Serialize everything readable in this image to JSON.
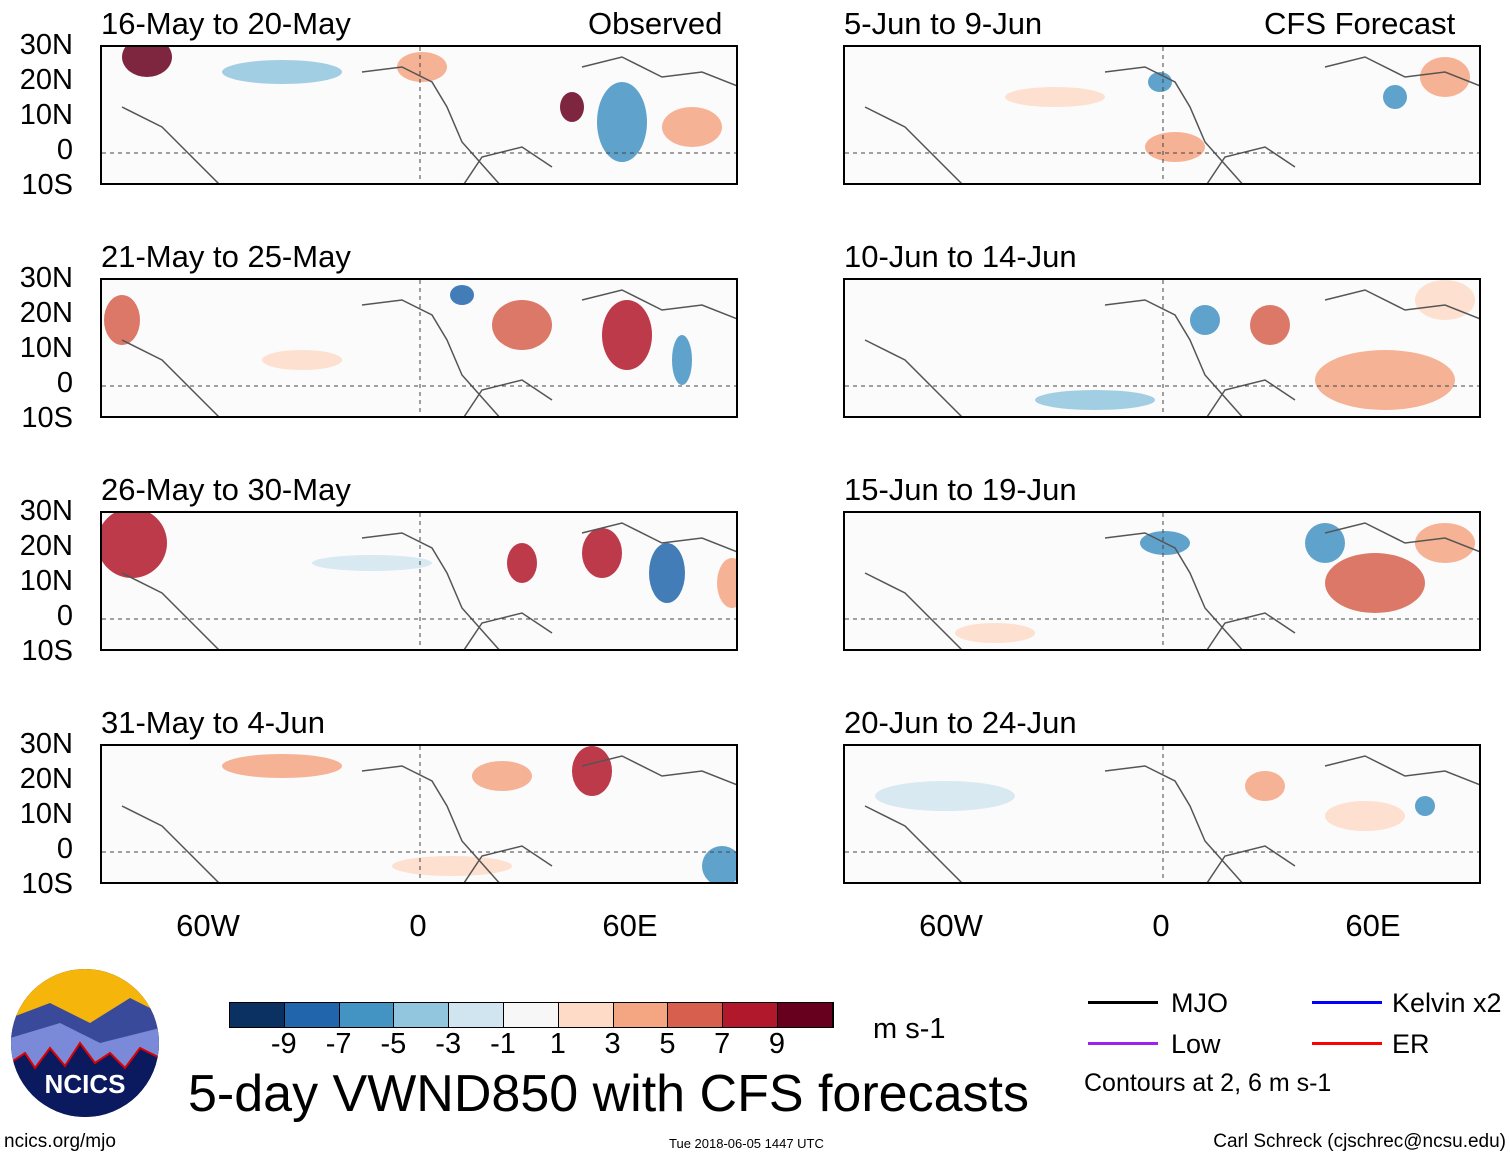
{
  "header": {
    "observed_label": "Observed",
    "forecast_label": "CFS Forecast"
  },
  "panels_observed": [
    {
      "title": "16-May to 20-May"
    },
    {
      "title": "21-May to 25-May"
    },
    {
      "title": "26-May to 30-May"
    },
    {
      "title": "31-May to 4-Jun"
    }
  ],
  "panels_forecast": [
    {
      "title": "5-Jun to 9-Jun"
    },
    {
      "title": "10-Jun to 14-Jun"
    },
    {
      "title": "15-Jun to 19-Jun"
    },
    {
      "title": "20-Jun to 24-Jun"
    }
  ],
  "lat_labels": [
    "30N",
    "20N",
    "10N",
    "0",
    "10S"
  ],
  "lon_labels": [
    "60W",
    "0",
    "60E"
  ],
  "colorbar": {
    "colors": [
      "#0a3161",
      "#2166ac",
      "#4393c3",
      "#92c5de",
      "#d1e5f0",
      "#f7f7f7",
      "#fddbc7",
      "#f4a582",
      "#d6604d",
      "#b2182b",
      "#67001f"
    ],
    "labels": [
      "-9",
      "-7",
      "-5",
      "-3",
      "-1",
      "1",
      "3",
      "5",
      "7",
      "9"
    ],
    "units": "m s-1"
  },
  "legend": {
    "items": [
      {
        "label": "MJO",
        "color": "#000000"
      },
      {
        "label": "Kelvin x2",
        "color": "#0000ff"
      },
      {
        "label": "Low",
        "color": "#a020f0"
      },
      {
        "label": "ER",
        "color": "#ff0000"
      }
    ],
    "contours_note": "Contours at 2, 6 m s-1"
  },
  "title": "5-day VWND850 with CFS forecasts",
  "logo_text": "NCICS",
  "footer": {
    "url": "ncics.org/mjo",
    "timestamp": "Tue 2018-06-05 1447 UTC",
    "credit": "Carl Schreck (cjschrec@ncsu.edu)"
  }
}
